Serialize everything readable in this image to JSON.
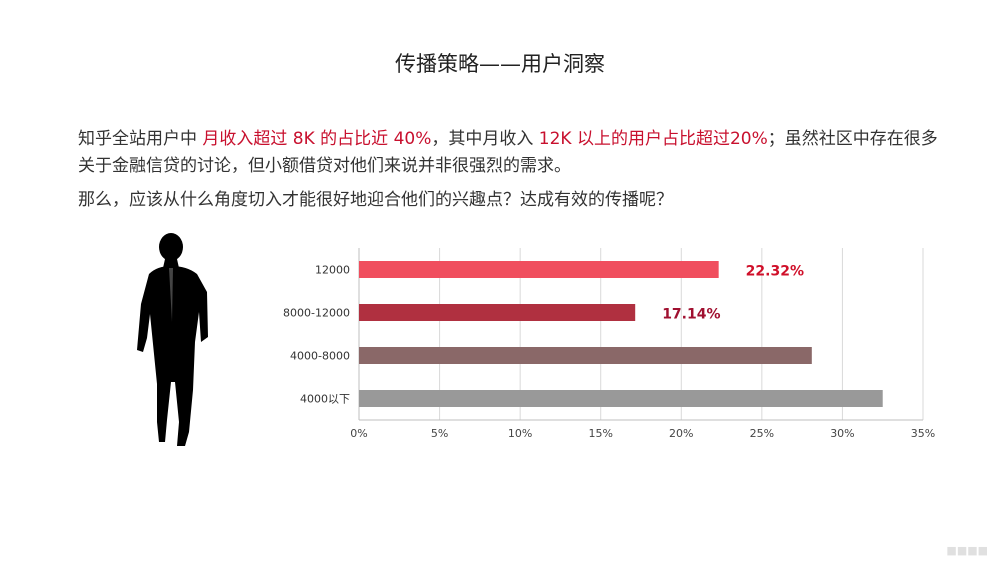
{
  "page": {
    "title": "传播策略——用户洞察",
    "para1": {
      "t1": "知乎全站用户中 ",
      "h1": "月收入超过 8K 的占比近 40%",
      "t2": "，其中月收入 ",
      "h2": "12K 以上的用户占比超过20%",
      "t3": "；虽然社区中存在很多关于金融信贷的讨论，但小额借贷对他们来说并非很强烈的需求。"
    },
    "para2": "那么，应该从什么角度切入才能很好地迎合他们的兴趣点？达成有效的传播呢？"
  },
  "colors": {
    "highlight": "#c8102e"
  },
  "illustration": {
    "icon": "person-silhouette-icon"
  },
  "chart_data": {
    "type": "bar",
    "orientation": "horizontal",
    "categories": [
      "12000",
      "8000-12000",
      "4000-8000",
      "4000以下"
    ],
    "values": [
      22.32,
      17.14,
      28.1,
      32.5
    ],
    "value_labels": [
      "22.32%",
      "17.14%",
      "",
      ""
    ],
    "colors": [
      "#f04e5e",
      "#b03040",
      "#8a6868",
      "#999999"
    ],
    "label_colors": [
      "#d0102a",
      "#a01030"
    ],
    "x_ticks": [
      "0%",
      "5%",
      "10%",
      "15%",
      "20%",
      "25%",
      "30%",
      "35%"
    ],
    "xlim": [
      0,
      35
    ],
    "grid": true,
    "legend": "none",
    "title": "",
    "xlabel": "",
    "ylabel": ""
  }
}
